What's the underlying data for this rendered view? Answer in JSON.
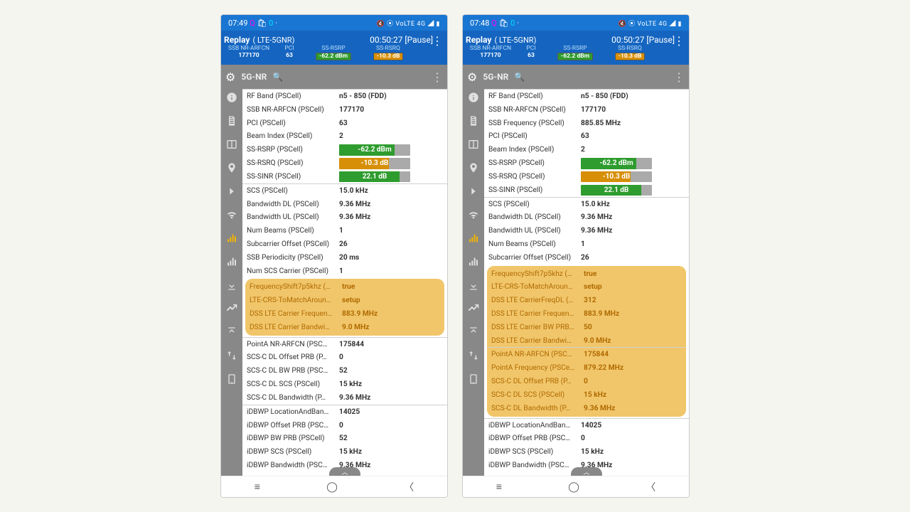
{
  "screens": [
    {
      "statusbar": {
        "time": "07:49",
        "apps": "Q 🛍 0 ·",
        "right": "🔇 ⦿ VoLTE 4G ◢ ▮"
      },
      "replay": {
        "title": "Replay",
        "net": "( LTE-5GNR)",
        "elapsed": "00:50:27 [Pause]",
        "cols": [
          {
            "label": "SSB NR-ARFCN",
            "value": "177170"
          },
          {
            "label": "PCI",
            "value": "63"
          },
          {
            "label": "SS-RSRP",
            "value": "-62.2 dBm",
            "bg": "#2e9c2e"
          },
          {
            "label": "SS-RSRQ",
            "value": "-10.3 dB",
            "bg": "#d68f06"
          }
        ]
      },
      "filter": "5G-NR",
      "sidebar_active": 6,
      "rows": [
        {
          "k": "RF Band (PSCell)",
          "v": "n5 - 850 (FDD)",
          "sep": true
        },
        {
          "k": "SSB NR-ARFCN (PSCell)",
          "v": "177170"
        },
        {
          "k": "PCI (PSCell)",
          "v": "63"
        },
        {
          "k": "Beam Index (PSCell)",
          "v": "2"
        },
        {
          "k": "SS-RSRP (PSCell)",
          "bar": {
            "text": "-62.2 dBm",
            "color": "#2e9c2e",
            "pct": "78%"
          }
        },
        {
          "k": "SS-RSRQ (PSCell)",
          "bar": {
            "text": "-10.3 dB",
            "color": "#d68f06",
            "pct": "70%"
          }
        },
        {
          "k": "SS-SINR (PSCell)",
          "bar": {
            "text": "22.1 dB",
            "color": "#2e9c2e",
            "pct": "85%"
          }
        },
        {
          "k": "SCS (PSCell)",
          "v": "15.0 kHz",
          "sep": true
        },
        {
          "k": "Bandwidth DL (PSCell)",
          "v": "9.36 MHz"
        },
        {
          "k": "Bandwidth UL (PSCell)",
          "v": "9.36 MHz"
        },
        {
          "k": "Num Beams (PSCell)",
          "v": "1"
        },
        {
          "k": "Subcarrier Offset (PSCell)",
          "v": "26"
        },
        {
          "k": "SSB Periodicity (PSCell)",
          "v": "20 ms"
        },
        {
          "k": "Num SCS Carrier (PSCell)",
          "v": "1"
        }
      ],
      "highlight": [
        {
          "k": "FrequencyShift7p5khz (…",
          "v": "true"
        },
        {
          "k": "LTE-CRS-ToMatchAroun…",
          "v": "setup"
        },
        {
          "k": "DSS LTE Carrier Frequen…",
          "v": "883.9 MHz"
        },
        {
          "k": "DSS LTE Carrier Bandwi…",
          "v": "9.0 MHz"
        }
      ],
      "rows2": [
        {
          "k": "PointA NR-ARFCN (PSC…",
          "v": "175844",
          "sep": true
        },
        {
          "k": "SCS-C DL Offset PRB (P…",
          "v": "0"
        },
        {
          "k": "SCS-C DL BW PRB (PSC…",
          "v": "52"
        },
        {
          "k": "SCS-C DL SCS (PSCell)",
          "v": "15 kHz"
        },
        {
          "k": "SCS-C DL Bandwidth (P…",
          "v": "9.36 MHz"
        },
        {
          "k": "iDBWP LocationAndBan…",
          "v": "14025",
          "sep": true
        },
        {
          "k": "iDBWP Offset PRB (PSC…",
          "v": "0"
        },
        {
          "k": "iDBWP BW PRB (PSCell)",
          "v": "52"
        },
        {
          "k": "iDBWP SCS (PSCell)",
          "v": "15 kHz"
        },
        {
          "k": "iDBWP Bandwidth (PSC…",
          "v": "9.36 MHz"
        }
      ]
    },
    {
      "statusbar": {
        "time": "07:48",
        "apps": "Q 🛍 0 ·",
        "right": "🔇 ⦿ VoLTE 4G ◢ ▮"
      },
      "replay": {
        "title": "Replay",
        "net": "( LTE-5GNR)",
        "elapsed": "00:50:27 [Pause]",
        "cols": [
          {
            "label": "SSB NR-ARFCN",
            "value": "177170"
          },
          {
            "label": "PCI",
            "value": "63"
          },
          {
            "label": "SS-RSRP",
            "value": "-62.2 dBm",
            "bg": "#2e9c2e"
          },
          {
            "label": "SS-RSRQ",
            "value": "-10.3 dB",
            "bg": "#d68f06"
          }
        ]
      },
      "filter": "5G-NR",
      "sidebar_active": 6,
      "rows": [
        {
          "k": "RF Band (PSCell)",
          "v": "n5 - 850 (FDD)",
          "sep": true
        },
        {
          "k": "SSB NR-ARFCN (PSCell)",
          "v": "177170"
        },
        {
          "k": "SSB Frequency (PSCell)",
          "v": "885.85 MHz"
        },
        {
          "k": "PCI (PSCell)",
          "v": "63"
        },
        {
          "k": "Beam Index (PSCell)",
          "v": "2"
        },
        {
          "k": "SS-RSRP (PSCell)",
          "bar": {
            "text": "-62.2 dBm",
            "color": "#2e9c2e",
            "pct": "78%"
          }
        },
        {
          "k": "SS-RSRQ (PSCell)",
          "bar": {
            "text": "-10.3 dB",
            "color": "#d68f06",
            "pct": "70%"
          }
        },
        {
          "k": "SS-SINR (PSCell)",
          "bar": {
            "text": "22.1 dB",
            "color": "#2e9c2e",
            "pct": "85%"
          }
        },
        {
          "k": "SCS (PSCell)",
          "v": "15.0 kHz",
          "sep": true
        },
        {
          "k": "Bandwidth DL (PSCell)",
          "v": "9.36 MHz"
        },
        {
          "k": "Bandwidth UL (PSCell)",
          "v": "9.36 MHz"
        },
        {
          "k": "Num Beams (PSCell)",
          "v": "1"
        },
        {
          "k": "Subcarrier Offset (PSCell)",
          "v": "26"
        }
      ],
      "highlight": [
        {
          "k": "FrequencyShift7p5khz (…",
          "v": "true"
        },
        {
          "k": "LTE-CRS-ToMatchAroun…",
          "v": "setup"
        },
        {
          "k": "DSS LTE CarrierFreqDL (…",
          "v": "312"
        },
        {
          "k": "DSS LTE Carrier Frequen…",
          "v": "883.9 MHz"
        },
        {
          "k": "DSS LTE Carrier BW PRB…",
          "v": "50"
        },
        {
          "k": "DSS LTE Carrier Bandwi…",
          "v": "9.0 MHz"
        },
        {
          "k": "PointA NR-ARFCN (PSC…",
          "v": "175844",
          "sep": true
        },
        {
          "k": "PointA Frequency (PSCe…",
          "v": "879.22 MHz"
        },
        {
          "k": "SCS-C DL Offset PRB (P…",
          "v": "0"
        },
        {
          "k": "SCS-C DL SCS (PSCell)",
          "v": "15 kHz"
        },
        {
          "k": "SCS-C DL Bandwidth (P…",
          "v": "9.36 MHz"
        }
      ],
      "rows2": [
        {
          "k": "iDBWP LocationAndBan…",
          "v": "14025",
          "sep": true
        },
        {
          "k": "iDBWP Offset PRB (PSC…",
          "v": "0"
        },
        {
          "k": "iDBWP SCS (PSCell)",
          "v": "15 kHz"
        },
        {
          "k": "iDBWP Bandwidth (PSC…",
          "v": "9.36 MHz"
        }
      ]
    }
  ],
  "sidebar_icons": [
    "info",
    "doc",
    "book",
    "pin",
    "chev",
    "wifi",
    "bars",
    "bars2",
    "down",
    "chart",
    "up",
    "swap",
    "phone"
  ],
  "colors": {
    "primary": "#1976d2",
    "primary_dark": "#1565c0",
    "side": "#888",
    "highlight_bg": "#f1c66a",
    "highlight_text": "#b06a00"
  }
}
